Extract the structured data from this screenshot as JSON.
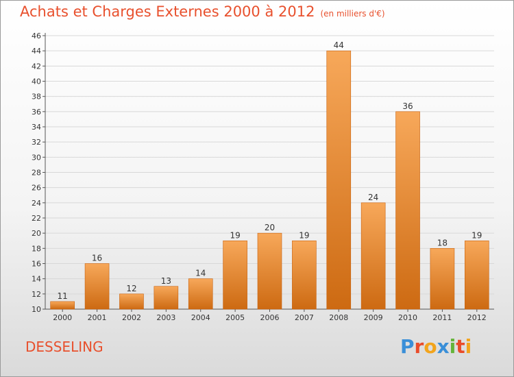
{
  "header": {
    "title": "Achats et Charges Externes 2000 à 2012",
    "unit": "(en milliers d'€)"
  },
  "footer": {
    "place": "DESSELING",
    "brand_letters": [
      {
        "ch": "P",
        "color": "#3a8fd8"
      },
      {
        "ch": "r",
        "color": "#e94c2a"
      },
      {
        "ch": "o",
        "color": "#f2a41c"
      },
      {
        "ch": "x",
        "color": "#3a8fd8"
      },
      {
        "ch": "i",
        "color": "#65b43a"
      },
      {
        "ch": "t",
        "color": "#e94c2a"
      },
      {
        "ch": "i",
        "color": "#f2a41c"
      }
    ]
  },
  "colors": {
    "bar_light": "#f7a85a",
    "bar_dark": "#cd6a12",
    "title": "#e8502d",
    "grid": "#d8d8d8"
  },
  "chart_data": {
    "type": "bar",
    "title": "Achats et Charges Externes 2000 à 2012",
    "subtitle": "(en milliers d'€)",
    "categories": [
      "2000",
      "2001",
      "2002",
      "2003",
      "2004",
      "2005",
      "2006",
      "2007",
      "2008",
      "2009",
      "2010",
      "2011",
      "2012"
    ],
    "values": [
      11,
      16,
      12,
      13,
      14,
      19,
      20,
      19,
      44,
      24,
      36,
      18,
      19
    ],
    "ylim": [
      10,
      46
    ],
    "yticks": [
      10,
      12,
      14,
      16,
      18,
      20,
      22,
      24,
      26,
      28,
      30,
      32,
      34,
      36,
      38,
      40,
      42,
      44,
      46
    ],
    "grid": true,
    "legend": "none"
  }
}
